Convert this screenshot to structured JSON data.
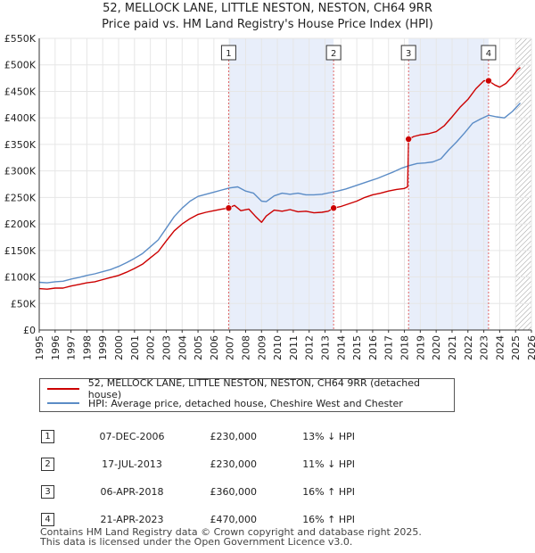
{
  "chart_data": {
    "type": "line",
    "title": "52, MELLOCK LANE, LITTLE NESTON, NESTON, CH64 9RR",
    "subtitle": "Price paid vs. HM Land Registry's House Price Index (HPI)",
    "xlabel": "",
    "ylabel": "",
    "xlim": [
      1995,
      2026
    ],
    "ylim": [
      0,
      550000
    ],
    "yticks": [
      0,
      50000,
      100000,
      150000,
      200000,
      250000,
      300000,
      350000,
      400000,
      450000,
      500000,
      550000
    ],
    "ytick_labels": [
      "£0",
      "£50K",
      "£100K",
      "£150K",
      "£200K",
      "£250K",
      "£300K",
      "£350K",
      "£400K",
      "£450K",
      "£500K",
      "£550K"
    ],
    "xticks": [
      1995,
      1996,
      1997,
      1998,
      1999,
      2000,
      2001,
      2002,
      2003,
      2004,
      2005,
      2006,
      2007,
      2008,
      2009,
      2010,
      2011,
      2012,
      2013,
      2014,
      2015,
      2016,
      2017,
      2018,
      2019,
      2020,
      2021,
      2022,
      2023,
      2024,
      2025,
      2026
    ],
    "xtick_labels": [
      "1995",
      "1996",
      "1997",
      "1998",
      "1999",
      "2000",
      "2001",
      "2002",
      "2003",
      "2004",
      "2005",
      "2006",
      "2007",
      "2008",
      "2009",
      "2010",
      "2011",
      "2012",
      "2013",
      "2014",
      "2015",
      "2016",
      "2017",
      "2018",
      "2019",
      "2020",
      "2021",
      "2022",
      "2023",
      "2024",
      "2025",
      "2026"
    ],
    "grid": true,
    "shaded_periods": [
      [
        2006.93,
        2013.54
      ],
      [
        2018.26,
        2023.3
      ]
    ],
    "hatched_region": [
      2025.0,
      2026.0
    ],
    "series": [
      {
        "name": "52, MELLOCK LANE, LITTLE NESTON, NESTON, CH64 9RR (detached house)",
        "color": "#cc0000",
        "x": [
          1995.0,
          1995.5,
          1996.0,
          1996.5,
          1997.0,
          1997.5,
          1998.0,
          1998.5,
          1999.0,
          1999.5,
          2000.0,
          2000.5,
          2001.0,
          2001.5,
          2002.0,
          2002.5,
          2003.0,
          2003.5,
          2004.0,
          2004.5,
          2005.0,
          2005.5,
          2006.0,
          2006.5,
          2006.93,
          2007.3,
          2007.7,
          2008.2,
          2008.6,
          2009.0,
          2009.3,
          2009.8,
          2010.3,
          2010.8,
          2011.3,
          2011.8,
          2012.3,
          2012.8,
          2013.2,
          2013.54,
          2014.0,
          2014.5,
          2015.0,
          2015.5,
          2016.0,
          2016.5,
          2017.0,
          2017.5,
          2018.0,
          2018.2,
          2018.26,
          2018.6,
          2019.0,
          2019.5,
          2020.0,
          2020.5,
          2021.0,
          2021.5,
          2022.0,
          2022.5,
          2023.0,
          2023.3,
          2023.7,
          2024.0,
          2024.4,
          2024.8,
          2025.1,
          2025.3
        ],
        "values": [
          78000,
          77000,
          79000,
          79000,
          83000,
          86000,
          89000,
          91000,
          95000,
          99000,
          103000,
          109000,
          116000,
          124000,
          136000,
          148000,
          168000,
          187000,
          200000,
          210000,
          218000,
          222000,
          225000,
          228000,
          230000,
          235000,
          225000,
          228000,
          215000,
          203000,
          215000,
          226000,
          224000,
          227000,
          223000,
          224000,
          221000,
          222000,
          224000,
          230000,
          233000,
          238000,
          243000,
          250000,
          255000,
          258000,
          262000,
          265000,
          267000,
          270000,
          360000,
          365000,
          368000,
          370000,
          374000,
          385000,
          402000,
          420000,
          435000,
          455000,
          470000,
          470000,
          462000,
          458000,
          465000,
          478000,
          490000,
          495000
        ]
      },
      {
        "name": "HPI: Average price, detached house, Cheshire West and Chester",
        "color": "#5b8cc6",
        "x": [
          1995.0,
          1995.5,
          1996.0,
          1996.5,
          1997.0,
          1997.5,
          1998.0,
          1998.5,
          1999.0,
          1999.5,
          2000.0,
          2000.5,
          2001.0,
          2001.5,
          2002.0,
          2002.5,
          2003.0,
          2003.5,
          2004.0,
          2004.5,
          2005.0,
          2005.5,
          2006.0,
          2006.5,
          2007.0,
          2007.5,
          2008.0,
          2008.5,
          2009.0,
          2009.3,
          2009.8,
          2010.3,
          2010.8,
          2011.3,
          2011.8,
          2012.3,
          2012.8,
          2013.3,
          2013.8,
          2014.3,
          2014.8,
          2015.3,
          2015.8,
          2016.3,
          2016.8,
          2017.3,
          2017.8,
          2018.3,
          2018.8,
          2019.3,
          2019.8,
          2020.3,
          2020.8,
          2021.3,
          2021.8,
          2022.3,
          2022.8,
          2023.3,
          2023.8,
          2024.3,
          2024.8,
          2025.3
        ],
        "values": [
          90000,
          89000,
          91000,
          92000,
          96000,
          99000,
          103000,
          106000,
          110000,
          114000,
          120000,
          127000,
          135000,
          144000,
          157000,
          170000,
          192000,
          214000,
          230000,
          243000,
          252000,
          256000,
          260000,
          264000,
          268000,
          270000,
          262000,
          258000,
          243000,
          242000,
          253000,
          258000,
          256000,
          258000,
          255000,
          255000,
          256000,
          259000,
          262000,
          266000,
          271000,
          276000,
          281000,
          286000,
          292000,
          298000,
          305000,
          310000,
          314000,
          315000,
          317000,
          323000,
          340000,
          355000,
          372000,
          390000,
          398000,
          405000,
          402000,
          400000,
          412000,
          428000
        ]
      }
    ],
    "markers": [
      {
        "label": "1",
        "x": 2006.93,
        "y": 230000
      },
      {
        "label": "2",
        "x": 2013.54,
        "y": 230000
      },
      {
        "label": "3",
        "x": 2018.26,
        "y": 360000
      },
      {
        "label": "4",
        "x": 2023.3,
        "y": 470000
      }
    ]
  },
  "legend": {
    "entries": [
      {
        "label": "52, MELLOCK LANE, LITTLE NESTON, NESTON, CH64 9RR (detached house)",
        "color": "#cc0000"
      },
      {
        "label": "HPI: Average price, detached house, Cheshire West and Chester",
        "color": "#5b8cc6"
      }
    ]
  },
  "sales": [
    {
      "num": "1",
      "date": "07-DEC-2006",
      "price": "£230,000",
      "hpi": "13% ↓ HPI"
    },
    {
      "num": "2",
      "date": "17-JUL-2013",
      "price": "£230,000",
      "hpi": "11% ↓ HPI"
    },
    {
      "num": "3",
      "date": "06-APR-2018",
      "price": "£360,000",
      "hpi": "16% ↑ HPI"
    },
    {
      "num": "4",
      "date": "21-APR-2023",
      "price": "£470,000",
      "hpi": "16% ↑ HPI"
    }
  ],
  "footer": {
    "line1": "Contains HM Land Registry data © Crown copyright and database right 2025.",
    "line2": "This data is licensed under the Open Government Licence v3.0."
  }
}
